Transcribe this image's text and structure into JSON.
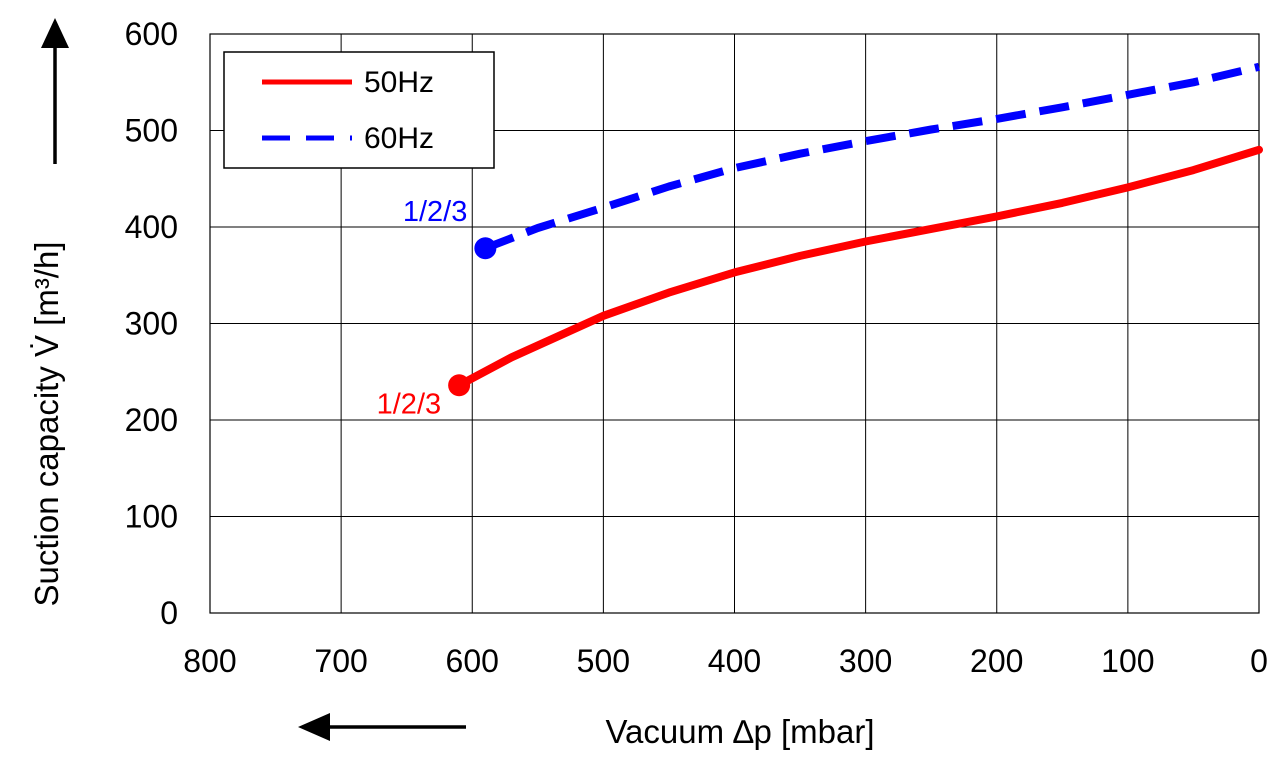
{
  "chart_data": {
    "type": "line",
    "title": "",
    "xlabel": "Vacuum ∆p [mbar]",
    "ylabel": "Suction capacity V̇ [m³/h]",
    "xlim": [
      800,
      0
    ],
    "ylim": [
      0,
      600
    ],
    "x_ticks": [
      "800",
      "700",
      "600",
      "500",
      "400",
      "300",
      "200",
      "100",
      "0"
    ],
    "y_ticks": [
      "0",
      "100",
      "200",
      "300",
      "400",
      "500",
      "600"
    ],
    "grid": true,
    "legend_position": "top-left",
    "series": [
      {
        "name": "50Hz",
        "color": "#ff0000",
        "style": "solid",
        "x": [
          610,
          570,
          500,
          450,
          400,
          350,
          300,
          250,
          200,
          150,
          100,
          50,
          0
        ],
        "y": [
          236,
          265,
          308,
          332,
          353,
          370,
          385,
          398,
          411,
          425,
          441,
          459,
          480
        ],
        "endpoint_label": "1/2/3",
        "endpoint_x": 610,
        "endpoint_y": 236
      },
      {
        "name": "60Hz",
        "color": "#0000ff",
        "style": "dashed",
        "x": [
          590,
          550,
          500,
          450,
          400,
          350,
          300,
          250,
          200,
          150,
          100,
          50,
          0
        ],
        "y": [
          378,
          399,
          420,
          442,
          461,
          476,
          489,
          501,
          512,
          524,
          537,
          550,
          566
        ],
        "endpoint_label": "1/2/3",
        "endpoint_x": 590,
        "endpoint_y": 378
      }
    ]
  }
}
